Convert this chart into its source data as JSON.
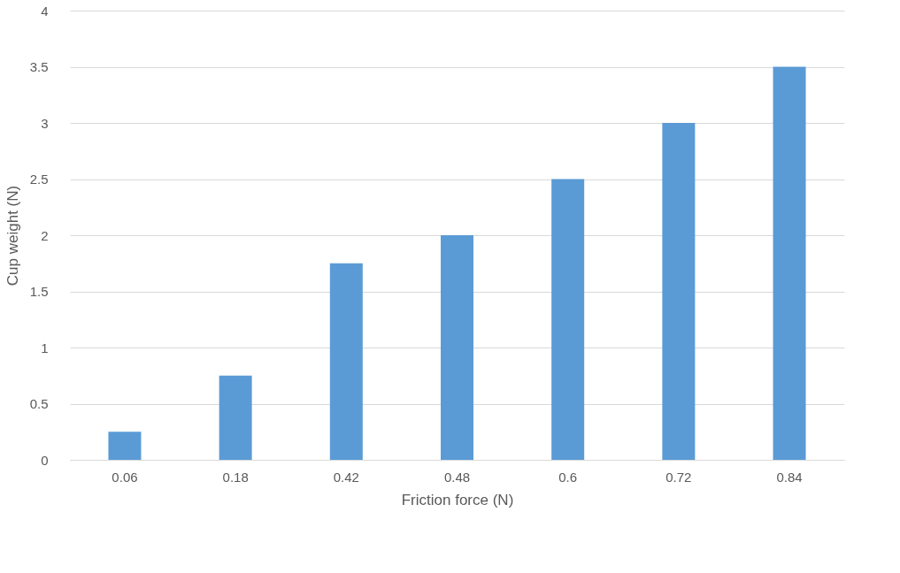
{
  "chart_data": {
    "type": "bar",
    "xlabel": "Friction force (N)",
    "ylabel": "Cup weight (N)",
    "categories": [
      "0.06",
      "0.18",
      "0.42",
      "0.48",
      "0.6",
      "0.72",
      "0.84"
    ],
    "values": [
      0.25,
      0.75,
      1.75,
      2,
      2.5,
      3,
      3.5
    ],
    "color": "#5b9bd5",
    "ylim": [
      0,
      4
    ],
    "yticks": [
      0,
      0.5,
      1,
      1.5,
      2,
      2.5,
      3,
      3.5,
      4
    ],
    "grid": "y"
  }
}
